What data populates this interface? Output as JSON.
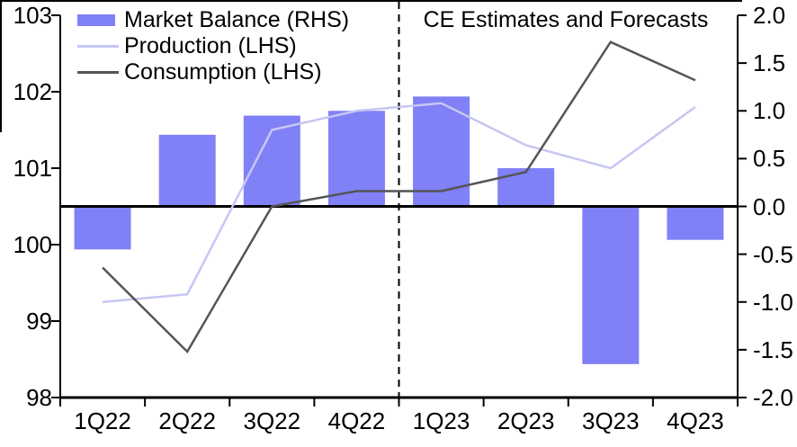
{
  "chart_data": {
    "type": "bar+line",
    "dual_axis": true,
    "categories": [
      "1Q22",
      "2Q22",
      "3Q22",
      "4Q22",
      "1Q23",
      "2Q23",
      "3Q23",
      "4Q23"
    ],
    "series": [
      {
        "name": "Market Balance (RHS)",
        "type": "bar",
        "axis": "right",
        "color": "#8080f7",
        "values": [
          -0.45,
          0.75,
          0.95,
          1.0,
          1.15,
          0.4,
          -1.65,
          -0.35
        ]
      },
      {
        "name": "Production (LHS)",
        "type": "line",
        "axis": "left",
        "color": "#c6c6f4",
        "values": [
          99.25,
          99.35,
          101.5,
          101.75,
          101.85,
          101.3,
          101.0,
          101.8
        ]
      },
      {
        "name": "Consumption (LHS)",
        "type": "line",
        "axis": "left",
        "color": "#555555",
        "values": [
          99.7,
          98.6,
          100.5,
          100.7,
          100.7,
          100.95,
          102.65,
          102.15
        ]
      }
    ],
    "annotation": "CE Estimates and Forecasts",
    "divider": {
      "type": "dashed-vertical",
      "after_category": "4Q22"
    },
    "left_axis": {
      "min": 98,
      "max": 103,
      "tick_values": [
        103,
        102,
        101,
        100,
        99,
        98
      ],
      "tick_labels": [
        "103",
        "102",
        "101",
        "100",
        "99",
        "98"
      ]
    },
    "right_axis": {
      "min": -2.0,
      "max": 2.0,
      "tick_values": [
        2.0,
        1.5,
        1.0,
        0.5,
        0.0,
        -0.5,
        -1.0,
        -1.5,
        -2.0
      ],
      "tick_labels": [
        "2.0",
        "1.5",
        "1.0",
        "0.5",
        "0.0",
        "-0.5",
        "-1.0",
        "-1.5",
        "-2.0"
      ]
    },
    "zero_line_right_value": 0.0,
    "grid": "off",
    "legend_position": "top-left"
  },
  "colors": {
    "axis": "#000000",
    "background": "#ffffff",
    "divider": "#000000"
  }
}
